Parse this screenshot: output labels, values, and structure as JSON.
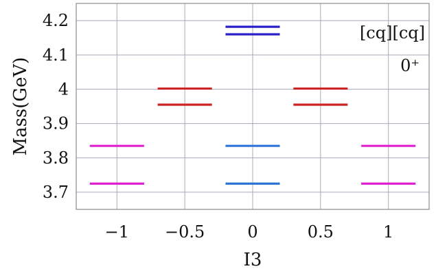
{
  "chart_data": {
    "type": "scatter",
    "title": "",
    "xlabel": "I3",
    "ylabel": "Mass(GeV)",
    "xlim": [
      -1.3,
      1.3
    ],
    "ylim": [
      3.65,
      4.25
    ],
    "grid": true,
    "x_ticks": [
      {
        "value": -1,
        "label": "−1"
      },
      {
        "value": -0.5,
        "label": "−0.5"
      },
      {
        "value": 0,
        "label": "0"
      },
      {
        "value": 0.5,
        "label": "0.5"
      },
      {
        "value": 1,
        "label": "1"
      }
    ],
    "y_ticks": [
      {
        "value": 3.7,
        "label": "3.7"
      },
      {
        "value": 3.8,
        "label": "3.8"
      },
      {
        "value": 3.9,
        "label": "3.9"
      },
      {
        "value": 4.0,
        "label": "4"
      },
      {
        "value": 4.1,
        "label": "4.1"
      },
      {
        "value": 4.2,
        "label": "4.2"
      }
    ],
    "annotations": [
      {
        "text": "[cq][cq]",
        "position": "top-right"
      },
      {
        "text": "0⁺",
        "position": "top-right"
      }
    ],
    "series": [
      {
        "color": "#e020d0",
        "levels": [
          {
            "x_center": -1,
            "half_width": 0.2,
            "y": 3.835
          },
          {
            "x_center": -1,
            "half_width": 0.2,
            "y": 3.725
          },
          {
            "x_center": 1,
            "half_width": 0.2,
            "y": 3.835
          },
          {
            "x_center": 1,
            "half_width": 0.2,
            "y": 3.725
          }
        ]
      },
      {
        "color": "#cc2222",
        "levels": [
          {
            "x_center": -0.5,
            "half_width": 0.2,
            "y": 4.002
          },
          {
            "x_center": -0.5,
            "half_width": 0.2,
            "y": 3.955
          },
          {
            "x_center": 0.5,
            "half_width": 0.2,
            "y": 4.002
          },
          {
            "x_center": 0.5,
            "half_width": 0.2,
            "y": 3.955
          }
        ]
      },
      {
        "color": "#2f74d6",
        "levels": [
          {
            "x_center": 0,
            "half_width": 0.2,
            "y": 3.835
          },
          {
            "x_center": 0,
            "half_width": 0.2,
            "y": 3.725
          }
        ]
      },
      {
        "color": "#2a1fc8",
        "levels": [
          {
            "x_center": 0,
            "half_width": 0.2,
            "y": 4.182
          },
          {
            "x_center": 0,
            "half_width": 0.2,
            "y": 4.16
          }
        ]
      }
    ]
  }
}
